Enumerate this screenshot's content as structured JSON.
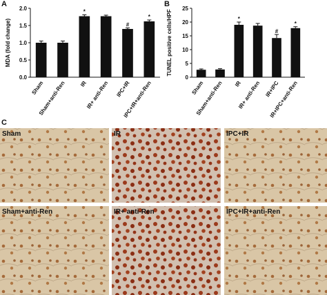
{
  "panel_labels": [
    "A",
    "B",
    "C"
  ],
  "chart_data": [
    {
      "type": "bar",
      "y_label": "MDA (fold change)",
      "categories": [
        "Sham",
        "Sham+anti-Ren",
        "IR",
        "IR+ anti-Ren",
        "IPC+IR",
        "IPC+IR+anti-Ren"
      ],
      "values": [
        1.0,
        1.0,
        1.77,
        1.77,
        1.4,
        1.62
      ],
      "errors": [
        0.05,
        0.05,
        0.04,
        0.03,
        0.03,
        0.04
      ],
      "annotations": [
        null,
        null,
        "*",
        null,
        "#",
        "*"
      ],
      "color": "#111111",
      "ylim": [
        0,
        2
      ],
      "yticks": [
        {
          "value": 0,
          "label": "0.0"
        },
        {
          "value": 0.5,
          "label": "0.5"
        },
        {
          "value": 1,
          "label": "1.0"
        },
        {
          "value": 1.5,
          "label": "1.5"
        },
        {
          "value": 2,
          "label": "2.0"
        }
      ]
    },
    {
      "type": "bar",
      "y_label": "TUNEL positive cells/HPF",
      "categories": [
        "Sham",
        "Sham+anti-Ren",
        "IR",
        "IR+ anti-Ren",
        "IR+IPC",
        "IR+IPC+anti-Ren"
      ],
      "values": [
        2.7,
        2.8,
        19,
        18.7,
        14.2,
        17.8
      ],
      "errors": [
        0.3,
        0.3,
        1,
        0.8,
        1.3,
        0.5
      ],
      "annotations": [
        null,
        null,
        "*",
        null,
        "#",
        "*"
      ],
      "color": "#111111",
      "ylim": [
        0,
        25
      ],
      "yticks": [
        0,
        5,
        10,
        15,
        20,
        25
      ]
    }
  ],
  "images": [
    {
      "label": "Sham"
    },
    {
      "label": "IR"
    },
    {
      "label": "IPC+IR"
    },
    {
      "label": "Sham+anti-Ren"
    },
    {
      "label": "IR+ anti-Ren"
    },
    {
      "label": "IPC+IR+anti-Ren"
    }
  ]
}
